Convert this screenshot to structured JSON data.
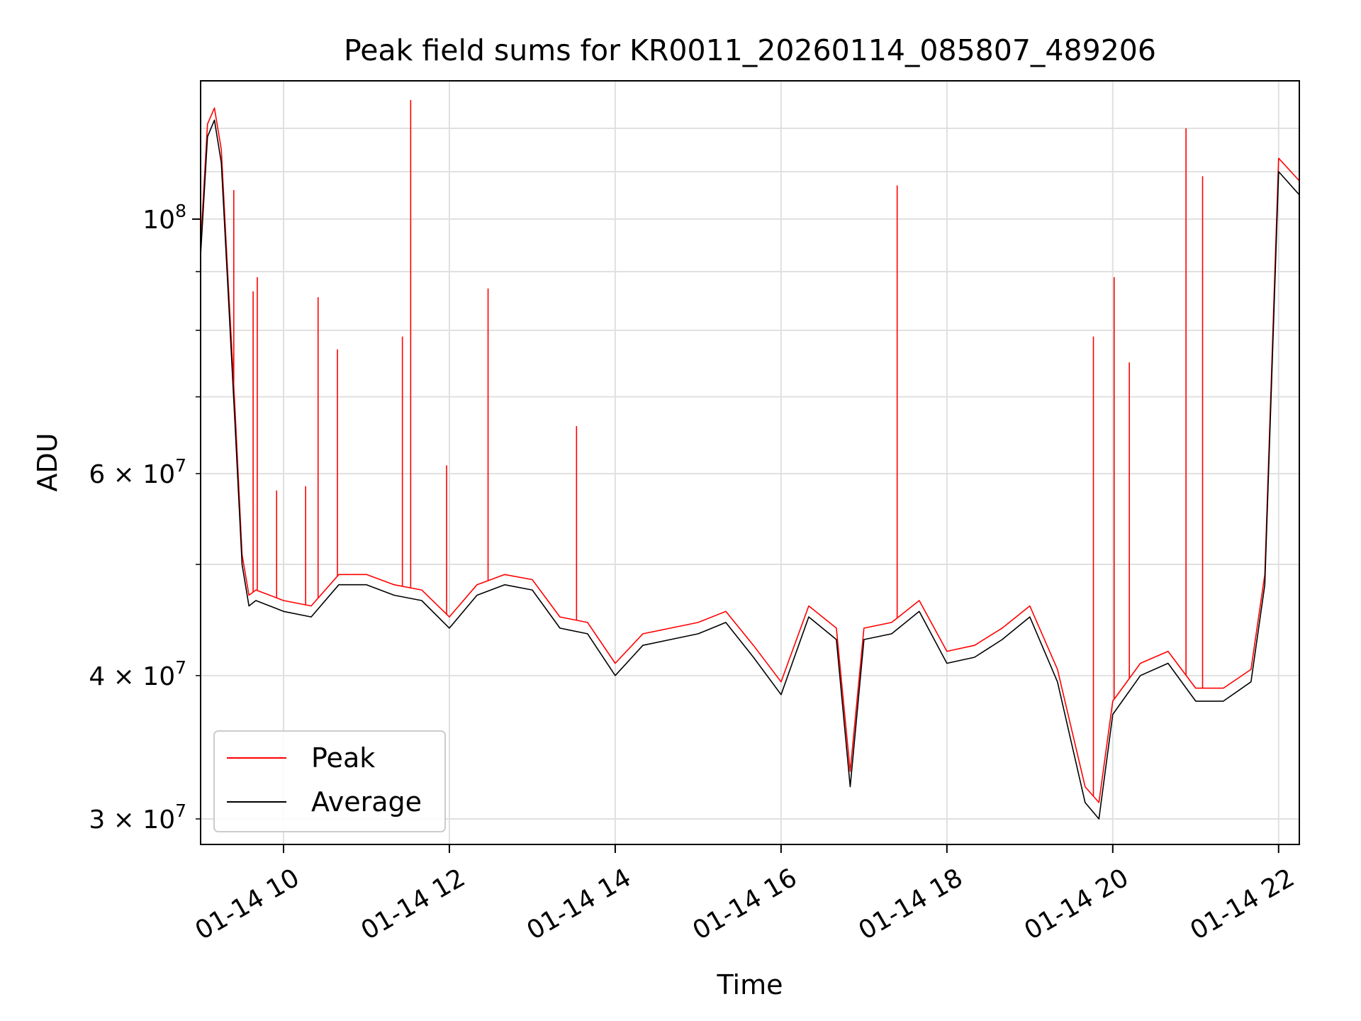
{
  "chart_data": {
    "type": "line",
    "title": "Peak field sums for KR0011_20260114_085807_489206",
    "xlabel": "Time",
    "ylabel": "ADU",
    "yscale": "log",
    "ylim": [
      28500000,
      132000000
    ],
    "xlim": [
      "01-14 09:00",
      "01-14 22:15"
    ],
    "grid": true,
    "legend": {
      "placement": "lower-left",
      "entries": [
        "Peak",
        "Average"
      ]
    },
    "x_ticks": [
      "01-14 10",
      "01-14 12",
      "01-14 14",
      "01-14 16",
      "01-14 18",
      "01-14 20",
      "01-14 22"
    ],
    "y_ticks_major": [
      {
        "value": 100000000,
        "label": "10^8"
      }
    ],
    "y_ticks_minor_labeled": [
      {
        "value": 30000000,
        "label": "3 × 10^7"
      },
      {
        "value": 40000000,
        "label": "4 × 10^7"
      },
      {
        "value": 60000000,
        "label": "6 × 10^7"
      }
    ],
    "colors": {
      "Peak": "#ff0000",
      "Average": "#000000"
    },
    "series": [
      {
        "name": "Average",
        "x": [
          "01-14 09:00",
          "01-14 09:05",
          "01-14 09:10",
          "01-14 09:15",
          "01-14 09:20",
          "01-14 09:25",
          "01-14 09:30",
          "01-14 09:35",
          "01-14 09:40",
          "01-14 09:50",
          "01-14 10:00",
          "01-14 10:20",
          "01-14 10:40",
          "01-14 11:00",
          "01-14 11:20",
          "01-14 11:40",
          "01-14 12:00",
          "01-14 12:20",
          "01-14 12:40",
          "01-14 13:00",
          "01-14 13:20",
          "01-14 13:40",
          "01-14 14:00",
          "01-14 14:20",
          "01-14 14:40",
          "01-14 15:00",
          "01-14 15:20",
          "01-14 15:40",
          "01-14 16:00",
          "01-14 16:20",
          "01-14 16:40",
          "01-14 16:50",
          "01-14 17:00",
          "01-14 17:20",
          "01-14 17:40",
          "01-14 18:00",
          "01-14 18:20",
          "01-14 18:40",
          "01-14 19:00",
          "01-14 19:20",
          "01-14 19:40",
          "01-14 19:50",
          "01-14 20:00",
          "01-14 20:20",
          "01-14 20:40",
          "01-14 21:00",
          "01-14 21:20",
          "01-14 21:40",
          "01-14 21:50",
          "01-14 22:00",
          "01-14 22:15"
        ],
        "values": [
          93000000,
          118000000,
          122000000,
          112000000,
          86000000,
          66000000,
          50000000,
          46000000,
          46500000,
          46000000,
          45500000,
          45000000,
          48000000,
          48000000,
          47000000,
          46500000,
          44000000,
          47000000,
          48000000,
          47500000,
          44000000,
          43500000,
          40000000,
          42500000,
          43000000,
          43500000,
          44500000,
          41500000,
          38500000,
          45000000,
          43000000,
          32000000,
          43000000,
          43500000,
          45500000,
          41000000,
          41500000,
          43000000,
          45000000,
          39500000,
          31000000,
          30000000,
          37000000,
          40000000,
          41000000,
          38000000,
          38000000,
          39500000,
          48000000,
          110000000,
          105000000
        ]
      },
      {
        "name": "Peak",
        "x": [
          "01-14 09:00",
          "01-14 09:05",
          "01-14 09:10",
          "01-14 09:15",
          "01-14 09:20",
          "01-14 09:25",
          "01-14 09:30",
          "01-14 09:35",
          "01-14 09:40",
          "01-14 09:50",
          "01-14 10:00",
          "01-14 10:20",
          "01-14 10:40",
          "01-14 11:00",
          "01-14 11:20",
          "01-14 11:40",
          "01-14 12:00",
          "01-14 12:20",
          "01-14 12:40",
          "01-14 13:00",
          "01-14 13:20",
          "01-14 13:40",
          "01-14 14:00",
          "01-14 14:20",
          "01-14 14:40",
          "01-14 15:00",
          "01-14 15:20",
          "01-14 15:40",
          "01-14 16:00",
          "01-14 16:20",
          "01-14 16:40",
          "01-14 16:50",
          "01-14 17:00",
          "01-14 17:20",
          "01-14 17:40",
          "01-14 18:00",
          "01-14 18:20",
          "01-14 18:40",
          "01-14 19:00",
          "01-14 19:20",
          "01-14 19:40",
          "01-14 19:50",
          "01-14 20:00",
          "01-14 20:20",
          "01-14 20:40",
          "01-14 21:00",
          "01-14 21:20",
          "01-14 21:40",
          "01-14 21:50",
          "01-14 22:00",
          "01-14 22:15"
        ],
        "values": [
          95000000,
          121000000,
          125000000,
          115000000,
          88000000,
          68000000,
          51000000,
          47000000,
          47500000,
          47000000,
          46500000,
          46000000,
          49000000,
          49000000,
          48000000,
          47500000,
          45000000,
          48000000,
          49000000,
          48500000,
          45000000,
          44500000,
          41000000,
          43500000,
          44000000,
          44500000,
          45500000,
          42500000,
          39500000,
          46000000,
          44000000,
          33000000,
          44000000,
          44500000,
          46500000,
          42000000,
          42500000,
          44000000,
          46000000,
          40500000,
          32000000,
          31000000,
          38000000,
          41000000,
          42000000,
          39000000,
          39000000,
          40500000,
          49000000,
          113000000,
          108000000
        ]
      }
    ],
    "spikes": [
      {
        "series": "Peak",
        "x": "01-14 09:24",
        "value": 106000000
      },
      {
        "series": "Peak",
        "x": "01-14 09:38",
        "value": 86500000
      },
      {
        "series": "Peak",
        "x": "01-14 09:41",
        "value": 89000000
      },
      {
        "series": "Peak",
        "x": "01-14 09:55",
        "value": 58000000
      },
      {
        "series": "Peak",
        "x": "01-14 10:16",
        "value": 58500000
      },
      {
        "series": "Peak",
        "x": "01-14 10:25",
        "value": 85500000
      },
      {
        "series": "Peak",
        "x": "01-14 10:39",
        "value": 77000000
      },
      {
        "series": "Peak",
        "x": "01-14 11:26",
        "value": 79000000
      },
      {
        "series": "Peak",
        "x": "01-14 11:32",
        "value": 127000000
      },
      {
        "series": "Peak",
        "x": "01-14 11:58",
        "value": 61000000
      },
      {
        "series": "Peak",
        "x": "01-14 12:28",
        "value": 87000000
      },
      {
        "series": "Peak",
        "x": "01-14 13:32",
        "value": 66000000
      },
      {
        "series": "Peak",
        "x": "01-14 17:24",
        "value": 107000000
      },
      {
        "series": "Peak",
        "x": "01-14 19:46",
        "value": 79000000
      },
      {
        "series": "Peak",
        "x": "01-14 20:01",
        "value": 89000000
      },
      {
        "series": "Peak",
        "x": "01-14 20:12",
        "value": 75000000
      },
      {
        "series": "Peak",
        "x": "01-14 20:53",
        "value": 120000000
      },
      {
        "series": "Peak",
        "x": "01-14 21:05",
        "value": 109000000
      }
    ]
  }
}
